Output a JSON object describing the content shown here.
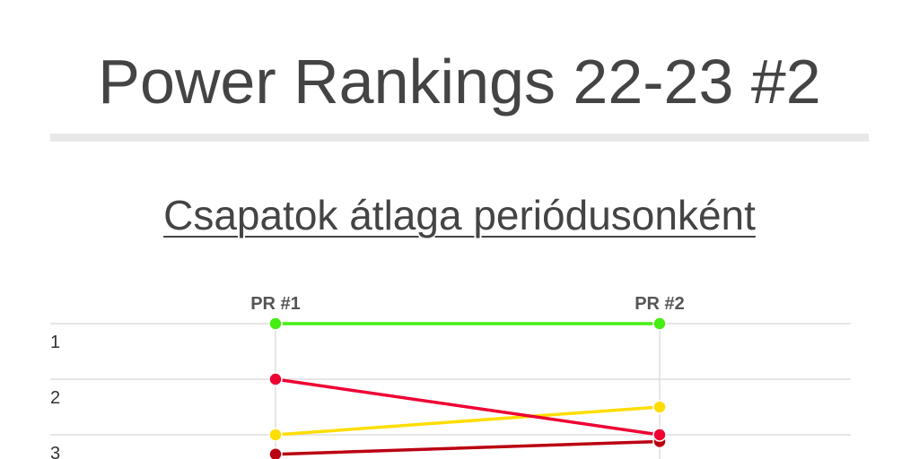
{
  "header": {
    "title": "Power Rankings 22-23 #2",
    "subtitle": "Csapatok átlaga periódusonként"
  },
  "chart_data": {
    "type": "line",
    "categories": [
      "PR #1",
      "PR #2"
    ],
    "rank_ticks": [
      "1",
      "2",
      "3"
    ],
    "ylim": [
      1,
      3.4
    ],
    "y_inverted": true,
    "grid": true,
    "series": [
      {
        "color": "#44ee11",
        "values": [
          1,
          1
        ]
      },
      {
        "color": "#ee0033",
        "values": [
          2,
          3
        ]
      },
      {
        "color": "#ffdd00",
        "values": [
          3,
          2.5
        ]
      },
      {
        "color": "#bb0011",
        "values": [
          3.35,
          3.12
        ]
      }
    ]
  }
}
